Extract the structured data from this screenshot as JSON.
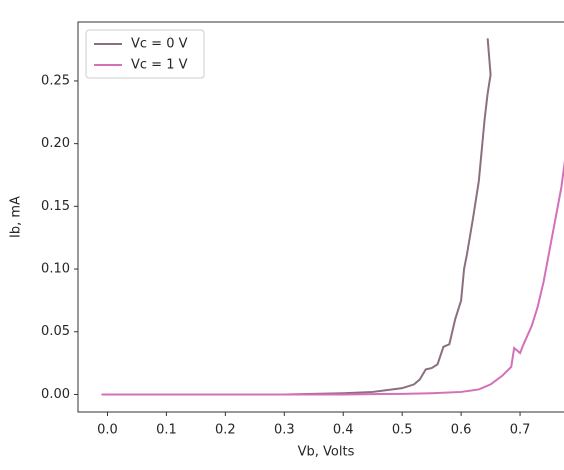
{
  "chart_data": {
    "type": "line",
    "xlabel": "Vb, Volts",
    "ylabel": "Ib, mA",
    "xlim": [
      -0.05,
      0.8
    ],
    "ylim": [
      -0.014,
      0.297
    ],
    "xticks": [
      {
        "value": 0,
        "label": "0.0"
      },
      {
        "value": 0.1,
        "label": "0.1"
      },
      {
        "value": 0.2,
        "label": "0.2"
      },
      {
        "value": 0.3,
        "label": "0.3"
      },
      {
        "value": 0.4,
        "label": "0.4"
      },
      {
        "value": 0.5,
        "label": "0.5"
      },
      {
        "value": 0.6,
        "label": "0.6"
      },
      {
        "value": 0.7,
        "label": "0.7"
      }
    ],
    "yticks": [
      {
        "value": 0,
        "label": "0.00"
      },
      {
        "value": 0.05,
        "label": "0.05"
      },
      {
        "value": 0.1,
        "label": "0.10"
      },
      {
        "value": 0.15,
        "label": "0.15"
      },
      {
        "value": 0.2,
        "label": "0.20"
      },
      {
        "value": 0.25,
        "label": "0.25"
      }
    ],
    "legend": "upper left",
    "series": [
      {
        "name": "Vc = 0 V",
        "color": "#8b6f80",
        "x": [
          -0.01,
          0.1,
          0.2,
          0.3,
          0.4,
          0.45,
          0.5,
          0.52,
          0.53,
          0.54,
          0.55,
          0.56,
          0.57,
          0.58,
          0.59,
          0.6,
          0.605,
          0.61,
          0.62,
          0.63,
          0.64,
          0.645,
          0.65,
          0.645
        ],
        "values": [
          0,
          0,
          0,
          0,
          0.001,
          0.002,
          0.005,
          0.008,
          0.012,
          0.02,
          0.021,
          0.024,
          0.038,
          0.04,
          0.06,
          0.075,
          0.1,
          0.112,
          0.14,
          0.17,
          0.22,
          0.24,
          0.255,
          0.284
        ]
      },
      {
        "name": "Vc = 1 V",
        "color": "#d46fba",
        "x": [
          -0.01,
          0.4,
          0.5,
          0.55,
          0.6,
          0.63,
          0.65,
          0.67,
          0.685,
          0.69,
          0.7,
          0.705,
          0.72,
          0.73,
          0.74,
          0.75,
          0.76,
          0.77,
          0.78
        ],
        "values": [
          0,
          0,
          0.0005,
          0.001,
          0.002,
          0.004,
          0.008,
          0.015,
          0.022,
          0.037,
          0.033,
          0.039,
          0.055,
          0.07,
          0.09,
          0.115,
          0.14,
          0.165,
          0.2
        ]
      }
    ]
  }
}
